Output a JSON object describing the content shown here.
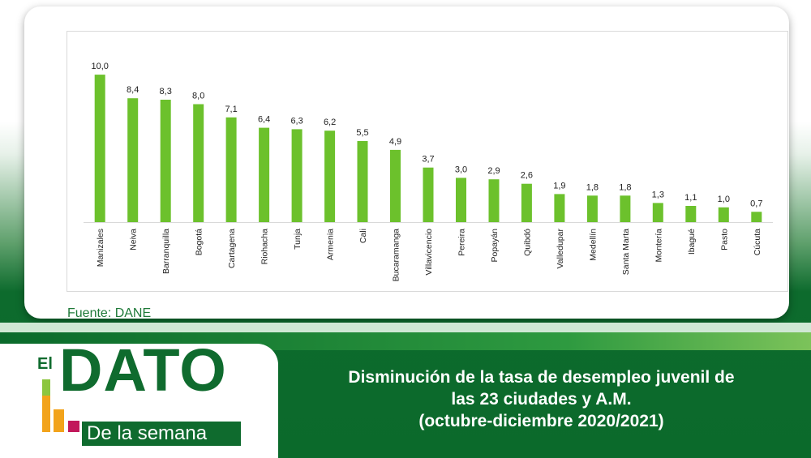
{
  "chart_data": {
    "type": "bar",
    "title": "",
    "xlabel": "",
    "ylabel": "",
    "ylim": [
      0,
      10.5
    ],
    "grid": false,
    "categories": [
      "Manizales",
      "Neiva",
      "Barranquilla",
      "Bogotá",
      "Cartagena",
      "Riohacha",
      "Tunja",
      "Armenia",
      "Cali",
      "Bucaramanga",
      "Villavicencio",
      "Pereira",
      "Popayán",
      "Quibdó",
      "Valledupar",
      "Medellín",
      "Santa Marta",
      "Montería",
      "Ibagué",
      "Pasto",
      "Cúcuta"
    ],
    "values": [
      10.0,
      8.4,
      8.3,
      8.0,
      7.1,
      6.4,
      6.3,
      6.2,
      5.5,
      4.9,
      3.7,
      3.0,
      2.9,
      2.6,
      1.9,
      1.8,
      1.8,
      1.3,
      1.1,
      1.0,
      0.7
    ],
    "value_labels": [
      "10,0",
      "8,4",
      "8,3",
      "8,0",
      "7,1",
      "6,4",
      "6,3",
      "6,2",
      "5,5",
      "4,9",
      "3,7",
      "3,0",
      "2,9",
      "2,6",
      "1,9",
      "1,8",
      "1,8",
      "1,3",
      "1,1",
      "1,0",
      "0,7"
    ],
    "bar_color": "#6cc12c"
  },
  "source": "Fuente: DANE",
  "headline": {
    "line1": "Disminución de la tasa de desempleo juvenil de",
    "line2": "las 23 ciudades y A.M.",
    "line3": "(octubre-diciembre 2020/2021)"
  },
  "logo": {
    "el": "El",
    "dato": "DATO",
    "subtitle": "De la semana"
  },
  "colors": {
    "brand_green": "#0f6b2e",
    "bar_green": "#6cc12c",
    "accent_orange": "#f2a31b",
    "accent_magenta": "#c2185b"
  }
}
